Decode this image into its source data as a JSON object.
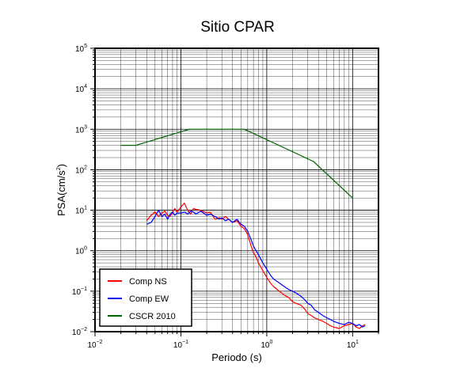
{
  "chart_data": {
    "type": "line",
    "title": "Sitio CPAR",
    "xlabel": "Periodo (s)",
    "ylabel": "PSA(cm/s²)",
    "ylabel_parts": {
      "base": "PSA(cm/s",
      "exp": "2",
      "tail": ")"
    },
    "x_scale": "log",
    "y_scale": "log",
    "xlim": [
      0.01,
      20
    ],
    "ylim": [
      0.01,
      100000
    ],
    "x_tick_labels": [
      {
        "value": 0.01,
        "base": "10",
        "exp": "−2"
      },
      {
        "value": 0.1,
        "base": "10",
        "exp": "−1"
      },
      {
        "value": 1,
        "base": "10",
        "exp": "0"
      },
      {
        "value": 10,
        "base": "10",
        "exp": "1"
      }
    ],
    "y_tick_labels": [
      {
        "value": 0.01,
        "base": "10",
        "exp": "−2"
      },
      {
        "value": 0.1,
        "base": "10",
        "exp": "−1"
      },
      {
        "value": 1,
        "base": "10",
        "exp": "0"
      },
      {
        "value": 10,
        "base": "10",
        "exp": "1"
      },
      {
        "value": 100,
        "base": "10",
        "exp": "2"
      },
      {
        "value": 1000,
        "base": "10",
        "exp": "3"
      },
      {
        "value": 10000,
        "base": "10",
        "exp": "4"
      },
      {
        "value": 100000,
        "base": "10",
        "exp": "5"
      }
    ],
    "grid": true,
    "legend_position": "bottom-left",
    "series": [
      {
        "name": "Comp NS",
        "color": "#ff0000",
        "x": [
          0.04,
          0.045,
          0.05,
          0.055,
          0.06,
          0.065,
          0.07,
          0.075,
          0.08,
          0.085,
          0.09,
          0.1,
          0.11,
          0.12,
          0.13,
          0.14,
          0.15,
          0.17,
          0.2,
          0.22,
          0.25,
          0.28,
          0.3,
          0.33,
          0.36,
          0.4,
          0.45,
          0.5,
          0.55,
          0.6,
          0.65,
          0.7,
          0.75,
          0.8,
          0.9,
          1.0,
          1.1,
          1.2,
          1.4,
          1.6,
          1.8,
          2.0,
          2.2,
          2.5,
          2.8,
          3.0,
          3.3,
          3.6,
          4.0,
          4.5,
          5.0,
          5.5,
          6.0,
          7.0,
          8.0,
          9.0,
          10.0,
          11.0,
          12.0,
          13.0,
          14.0
        ],
        "y": [
          5.5,
          7.5,
          9,
          7,
          8.5,
          9.5,
          7.5,
          7,
          9,
          11,
          9,
          12,
          15,
          10,
          8,
          11,
          10.5,
          10,
          8.5,
          9,
          6,
          6.5,
          6,
          7,
          6,
          5,
          5.5,
          4,
          3.5,
          2.5,
          1.4,
          0.9,
          0.7,
          0.5,
          0.32,
          0.22,
          0.16,
          0.13,
          0.1,
          0.08,
          0.07,
          0.055,
          0.05,
          0.045,
          0.035,
          0.028,
          0.025,
          0.022,
          0.02,
          0.018,
          0.016,
          0.014,
          0.013,
          0.012,
          0.014,
          0.015,
          0.016,
          0.013,
          0.012,
          0.014,
          0.015
        ]
      },
      {
        "name": "Comp EW",
        "color": "#0000ff",
        "x": [
          0.04,
          0.045,
          0.05,
          0.055,
          0.06,
          0.065,
          0.07,
          0.075,
          0.08,
          0.085,
          0.09,
          0.1,
          0.11,
          0.12,
          0.13,
          0.14,
          0.15,
          0.17,
          0.2,
          0.22,
          0.25,
          0.28,
          0.3,
          0.33,
          0.36,
          0.4,
          0.45,
          0.5,
          0.55,
          0.6,
          0.65,
          0.7,
          0.75,
          0.8,
          0.9,
          1.0,
          1.1,
          1.2,
          1.4,
          1.6,
          1.8,
          2.0,
          2.2,
          2.5,
          2.8,
          3.0,
          3.3,
          3.6,
          4.0,
          4.5,
          5.0,
          5.5,
          6.0,
          7.0,
          8.0,
          9.0,
          10.0,
          11.0,
          12.0,
          13.0,
          14.0
        ],
        "y": [
          4.5,
          5,
          7,
          10,
          7,
          8,
          6,
          8,
          9,
          7.5,
          8.5,
          8.5,
          9,
          8,
          9.5,
          9,
          8,
          9.5,
          7.5,
          8,
          7,
          6,
          6.5,
          5.5,
          6,
          5,
          6,
          4.5,
          4,
          3,
          2,
          1.3,
          1.0,
          0.8,
          0.5,
          0.35,
          0.25,
          0.2,
          0.16,
          0.13,
          0.11,
          0.1,
          0.09,
          0.075,
          0.06,
          0.05,
          0.045,
          0.035,
          0.03,
          0.025,
          0.022,
          0.02,
          0.018,
          0.016,
          0.015,
          0.017,
          0.016,
          0.014,
          0.015,
          0.013,
          0.014
        ]
      },
      {
        "name": "CSCR 2010",
        "color": "#006400",
        "x": [
          0.02,
          0.03,
          0.125,
          0.55,
          3.5,
          10
        ],
        "y": [
          400,
          400,
          1000,
          1000,
          160,
          20
        ]
      }
    ]
  }
}
